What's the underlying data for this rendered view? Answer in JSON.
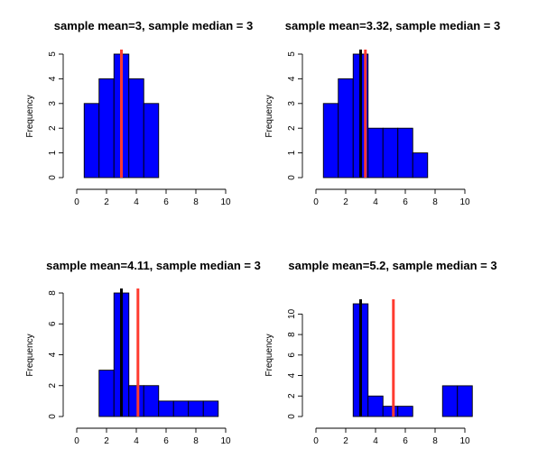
{
  "colors": {
    "bar": "#0000ff",
    "bar_border": "#000000",
    "median_line": "#000000",
    "mean_line": "#ff3b2f"
  },
  "chart_data": [
    {
      "type": "histogram",
      "title": "sample mean=3, sample median = 3",
      "xlabel": "",
      "ylabel": "Frequency",
      "xlim": [
        0,
        10
      ],
      "ylim": [
        0,
        5
      ],
      "xticks": [
        0,
        2,
        4,
        6,
        8,
        10
      ],
      "yticks": [
        0,
        1,
        2,
        3,
        4,
        5
      ],
      "bins": [
        {
          "from": 0.5,
          "to": 1.5,
          "count": 3
        },
        {
          "from": 1.5,
          "to": 2.5,
          "count": 4
        },
        {
          "from": 2.5,
          "to": 3.5,
          "count": 5
        },
        {
          "from": 3.5,
          "to": 4.5,
          "count": 4
        },
        {
          "from": 4.5,
          "to": 5.5,
          "count": 3
        }
      ],
      "mean": 3,
      "median": 3
    },
    {
      "type": "histogram",
      "title": "sample mean=3.32, sample median = 3",
      "xlabel": "",
      "ylabel": "Frequency",
      "xlim": [
        0,
        10
      ],
      "ylim": [
        0,
        5
      ],
      "xticks": [
        0,
        2,
        4,
        6,
        8,
        10
      ],
      "yticks": [
        0,
        1,
        2,
        3,
        4,
        5
      ],
      "bins": [
        {
          "from": 0.5,
          "to": 1.5,
          "count": 3
        },
        {
          "from": 1.5,
          "to": 2.5,
          "count": 4
        },
        {
          "from": 2.5,
          "to": 3.5,
          "count": 5
        },
        {
          "from": 3.5,
          "to": 4.5,
          "count": 2
        },
        {
          "from": 4.5,
          "to": 5.5,
          "count": 2
        },
        {
          "from": 5.5,
          "to": 6.5,
          "count": 2
        },
        {
          "from": 6.5,
          "to": 7.5,
          "count": 1
        }
      ],
      "mean": 3.32,
      "median": 3
    },
    {
      "type": "histogram",
      "title": "sample mean=4.11, sample median = 3",
      "xlabel": "",
      "ylabel": "Frequency",
      "xlim": [
        0,
        10
      ],
      "ylim": [
        0,
        8
      ],
      "xticks": [
        0,
        2,
        4,
        6,
        8,
        10
      ],
      "yticks": [
        0,
        2,
        4,
        6,
        8
      ],
      "bins": [
        {
          "from": 1.5,
          "to": 2.5,
          "count": 3
        },
        {
          "from": 2.5,
          "to": 3.5,
          "count": 8
        },
        {
          "from": 3.5,
          "to": 4.5,
          "count": 2
        },
        {
          "from": 4.5,
          "to": 5.5,
          "count": 2
        },
        {
          "from": 5.5,
          "to": 6.5,
          "count": 1
        },
        {
          "from": 6.5,
          "to": 7.5,
          "count": 1
        },
        {
          "from": 7.5,
          "to": 8.5,
          "count": 1
        },
        {
          "from": 8.5,
          "to": 9.5,
          "count": 1
        }
      ],
      "mean": 4.11,
      "median": 3
    },
    {
      "type": "histogram",
      "title": "sample mean=5.2, sample median = 3",
      "xlabel": "",
      "ylabel": "Frequency",
      "xlim": [
        0,
        10
      ],
      "ylim": [
        0,
        11
      ],
      "xticks": [
        0,
        2,
        4,
        6,
        8,
        10
      ],
      "yticks": [
        0,
        2,
        4,
        6,
        8,
        10
      ],
      "bins": [
        {
          "from": 1.5,
          "to": 2.5,
          "count": 0
        },
        {
          "from": 2.5,
          "to": 3.5,
          "count": 11
        },
        {
          "from": 3.5,
          "to": 4.5,
          "count": 2
        },
        {
          "from": 4.5,
          "to": 5.5,
          "count": 1
        },
        {
          "from": 5.5,
          "to": 6.5,
          "count": 1
        },
        {
          "from": 6.5,
          "to": 7.5,
          "count": 0
        },
        {
          "from": 7.5,
          "to": 8.5,
          "count": 0
        },
        {
          "from": 8.5,
          "to": 9.5,
          "count": 3
        },
        {
          "from": 9.5,
          "to": 10.5,
          "count": 3
        }
      ],
      "mean": 5.2,
      "median": 3
    }
  ]
}
